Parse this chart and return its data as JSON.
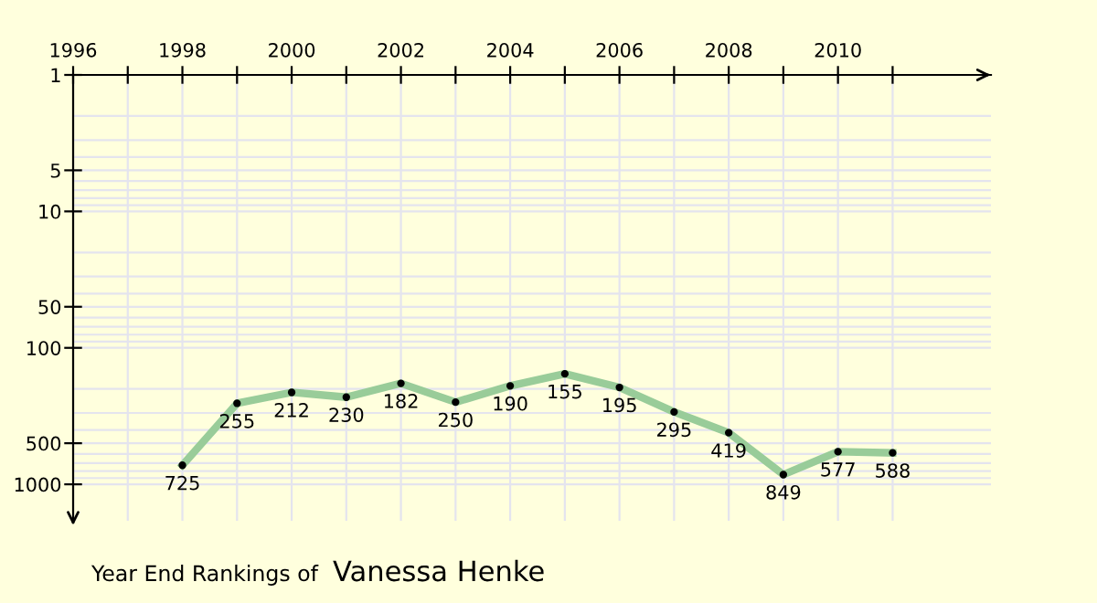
{
  "chart_data": {
    "type": "line",
    "title": "Year End Rankings of",
    "subtitle": "Vanessa Henke",
    "x": [
      1998,
      1999,
      2000,
      2001,
      2002,
      2003,
      2004,
      2005,
      2006,
      2007,
      2008,
      2009,
      2010,
      2011
    ],
    "series": [
      {
        "color": "#99cc99",
        "values": [
          725,
          255,
          212,
          230,
          182,
          250,
          190,
          155,
          195,
          295,
          419,
          849,
          577,
          588
        ]
      }
    ],
    "data_labels": true,
    "marker": "circle",
    "log": "y",
    "grid": true,
    "legend": false,
    "xlim": [
      1996,
      2012.8
    ],
    "ylim": [
      1850,
      1
    ],
    "xticks": [
      1996,
      {
        "value": 1997,
        "label": null
      },
      1998,
      {
        "value": 1999,
        "label": null
      },
      2000,
      {
        "value": 2001,
        "label": null
      },
      2002,
      {
        "value": 2003,
        "label": null
      },
      2004,
      {
        "value": 2005,
        "label": null
      },
      2006,
      {
        "value": 2007,
        "label": null
      },
      2008,
      {
        "value": 2009,
        "label": null
      },
      2010,
      {
        "value": 2011,
        "label": null
      }
    ],
    "yticks": [
      1,
      5,
      10,
      50,
      100,
      500,
      1000
    ]
  }
}
